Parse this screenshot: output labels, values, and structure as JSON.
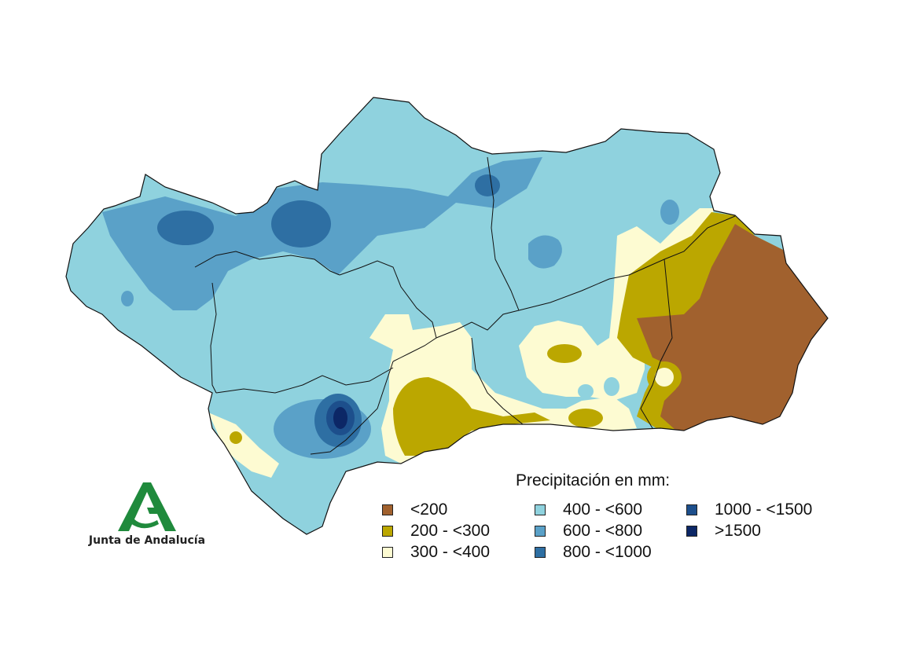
{
  "legend": {
    "title": "Precipitación en mm:",
    "items": [
      {
        "label": "<200",
        "color": "#a1612e"
      },
      {
        "label": "200 - <300",
        "color": "#bba700"
      },
      {
        "label": "300 - <400",
        "color": "#fdfbd2"
      },
      {
        "label": "400 - <600",
        "color": "#8fd2de"
      },
      {
        "label": "600 - <800",
        "color": "#5aa1c8"
      },
      {
        "label": "800 - <1000",
        "color": "#2e6fa3"
      },
      {
        "label": "1000 - <1500",
        "color": "#1d4f8c"
      },
      {
        "label": ">1500",
        "color": "#0c2766"
      }
    ]
  },
  "logo": {
    "text": "Junta de Andalucía",
    "color": "#1f8a3c"
  },
  "map": {
    "region": "Andalucía",
    "base_color": "#8fd2de",
    "border_color": "#111111"
  }
}
